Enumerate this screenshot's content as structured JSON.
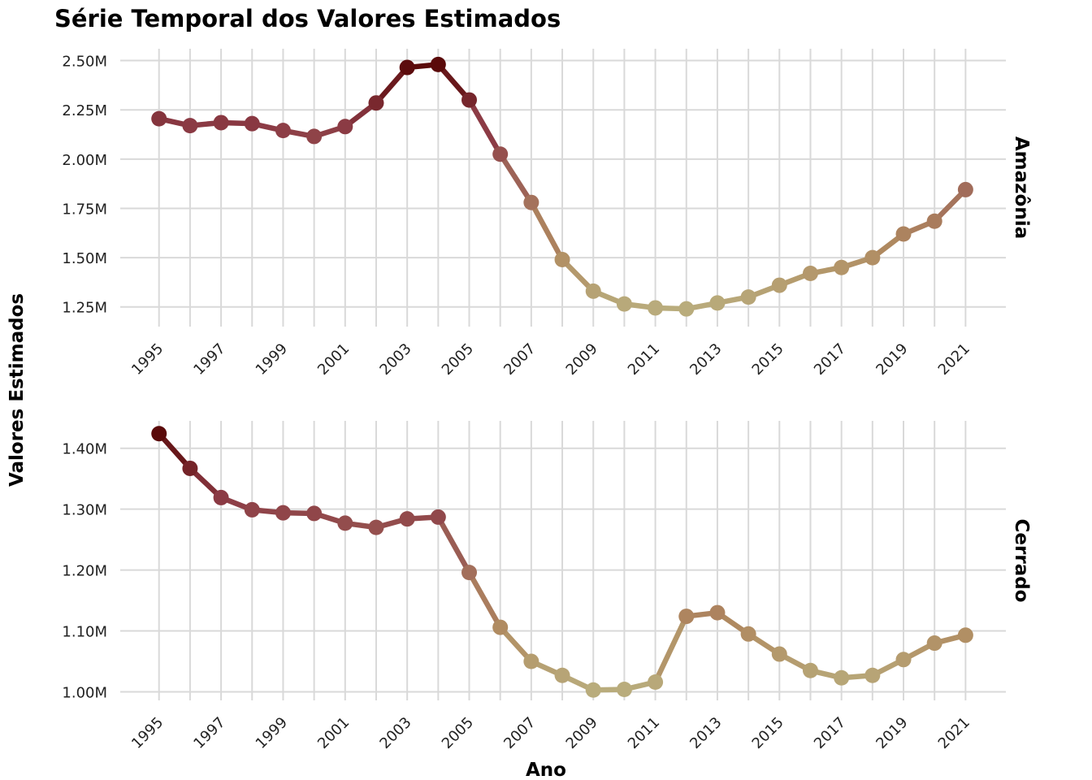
{
  "chart_data": {
    "type": "line",
    "title": "Série Temporal dos Valores Estimados",
    "xlabel": "Ano",
    "ylabel": "Valores Estimados",
    "x": [
      1995,
      1996,
      1997,
      1998,
      1999,
      2000,
      2001,
      2002,
      2003,
      2004,
      2005,
      2006,
      2007,
      2008,
      2009,
      2010,
      2011,
      2012,
      2013,
      2014,
      2015,
      2016,
      2017,
      2018,
      2019,
      2020,
      2021
    ],
    "x_tick_labels": [
      "1995",
      "1997",
      "1999",
      "2001",
      "2003",
      "2005",
      "2007",
      "2009",
      "2011",
      "2013",
      "2015",
      "2017",
      "2019",
      "2021"
    ],
    "grid": true,
    "legend": "none",
    "color_scale": {
      "high": "#5a0a0a",
      "mid_high": "#8b3a44",
      "mid": "#a06a5a",
      "mid_low": "#b08a60",
      "low": "#b9ac7c"
    },
    "panels": [
      {
        "strip_label": "Amazônia",
        "ylim": [
          1.15,
          2.56
        ],
        "y_ticks": [
          1.25,
          1.5,
          1.75,
          2.0,
          2.25,
          2.5
        ],
        "y_tick_labels": [
          "1.25M",
          "1.50M",
          "1.75M",
          "2.00M",
          "2.25M",
          "2.50M"
        ],
        "values": [
          2.205,
          2.17,
          2.185,
          2.18,
          2.145,
          2.115,
          2.165,
          2.285,
          2.465,
          2.48,
          2.3,
          2.025,
          1.78,
          1.49,
          1.33,
          1.265,
          1.245,
          1.24,
          1.27,
          1.3,
          1.36,
          1.42,
          1.45,
          1.5,
          1.62,
          1.685,
          1.845
        ]
      },
      {
        "strip_label": "Cerrado",
        "ylim": [
          0.986,
          1.445
        ],
        "y_ticks": [
          1.0,
          1.1,
          1.2,
          1.3,
          1.4
        ],
        "y_tick_labels": [
          "1.00M",
          "1.10M",
          "1.20M",
          "1.30M",
          "1.40M"
        ],
        "values": [
          1.424,
          1.367,
          1.319,
          1.299,
          1.294,
          1.293,
          1.277,
          1.27,
          1.284,
          1.287,
          1.196,
          1.106,
          1.05,
          1.027,
          1.003,
          1.004,
          1.016,
          1.124,
          1.13,
          1.095,
          1.062,
          1.035,
          1.023,
          1.027,
          1.053,
          1.08,
          1.093
        ]
      }
    ]
  }
}
